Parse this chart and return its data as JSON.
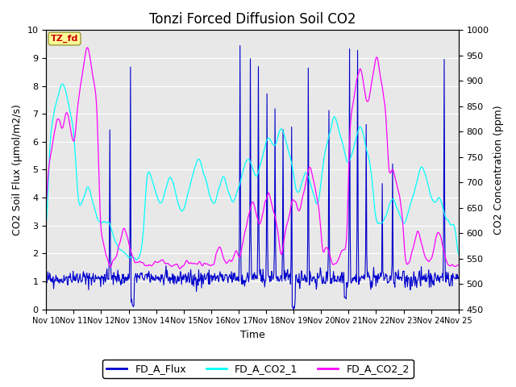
{
  "title": "Tonzi Forced Diffusion Soil CO2",
  "xlabel": "Time",
  "ylabel_left": "CO2 Soil Flux (μmol/m2/s)",
  "ylabel_right": "CO2 Concentration (ppm)",
  "ylim_left": [
    0.0,
    10.0
  ],
  "ylim_right": [
    450,
    1000
  ],
  "yticks_left": [
    0.0,
    1.0,
    2.0,
    3.0,
    4.0,
    5.0,
    6.0,
    7.0,
    8.0,
    9.0,
    10.0
  ],
  "yticks_right": [
    450,
    500,
    550,
    600,
    650,
    700,
    750,
    800,
    850,
    900,
    950,
    1000
  ],
  "xtick_labels": [
    "Nov 10",
    "Nov 11",
    "Nov 12",
    "Nov 13",
    "Nov 14",
    "Nov 15",
    "Nov 16",
    "Nov 17",
    "Nov 18",
    "Nov 19",
    "Nov 20",
    "Nov 21",
    "Nov 22",
    "Nov 23",
    "Nov 24",
    "Nov 25"
  ],
  "legend_labels": [
    "FD_A_Flux",
    "FD_A_CO2_1",
    "FD_A_CO2_2"
  ],
  "colors": {
    "flux": "#0000CD",
    "co2_1": "#00FFFF",
    "co2_2": "#FF00FF"
  },
  "tab_label": "TZ_fd",
  "tab_color": "#FFFF99",
  "tab_text_color": "#CC0000",
  "background_color": "#E8E8E8",
  "grid_color": "#FFFFFF",
  "title_fontsize": 12,
  "axis_fontsize": 9,
  "tick_fontsize": 8,
  "legend_fontsize": 9,
  "n_points": 720
}
